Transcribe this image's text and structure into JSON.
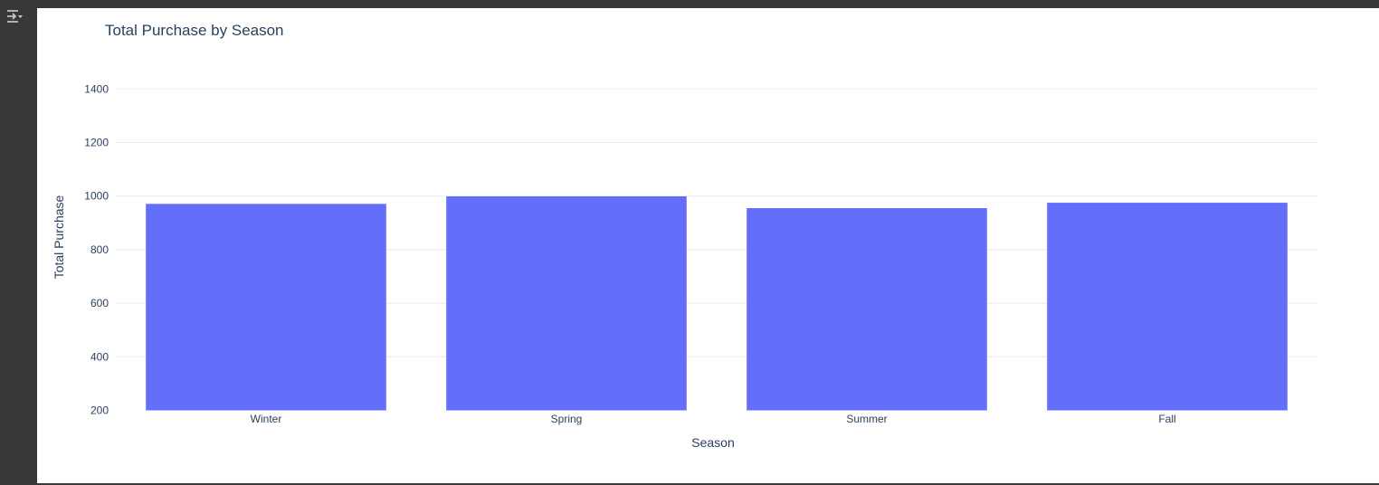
{
  "gutter": {
    "toggle_icon": "output-collapse-icon"
  },
  "colors": {
    "bar": "#636efa",
    "grid": "#ebebeb",
    "text": "#2a3f5f",
    "panel_bg": "#ffffff",
    "frame": "#383838"
  },
  "chart_data": {
    "type": "bar",
    "title": "Total Purchase by Season",
    "xlabel": "Season",
    "ylabel": "Total Purchase",
    "categories": [
      "Winter",
      "Spring",
      "Summer",
      "Fall"
    ],
    "values": [
      971,
      999,
      955,
      975
    ],
    "ylim": [
      200,
      1500
    ],
    "yticks": [
      "200",
      "400",
      "600",
      "800",
      "1000",
      "1200",
      "1400"
    ],
    "grid": true,
    "legend": "none"
  }
}
